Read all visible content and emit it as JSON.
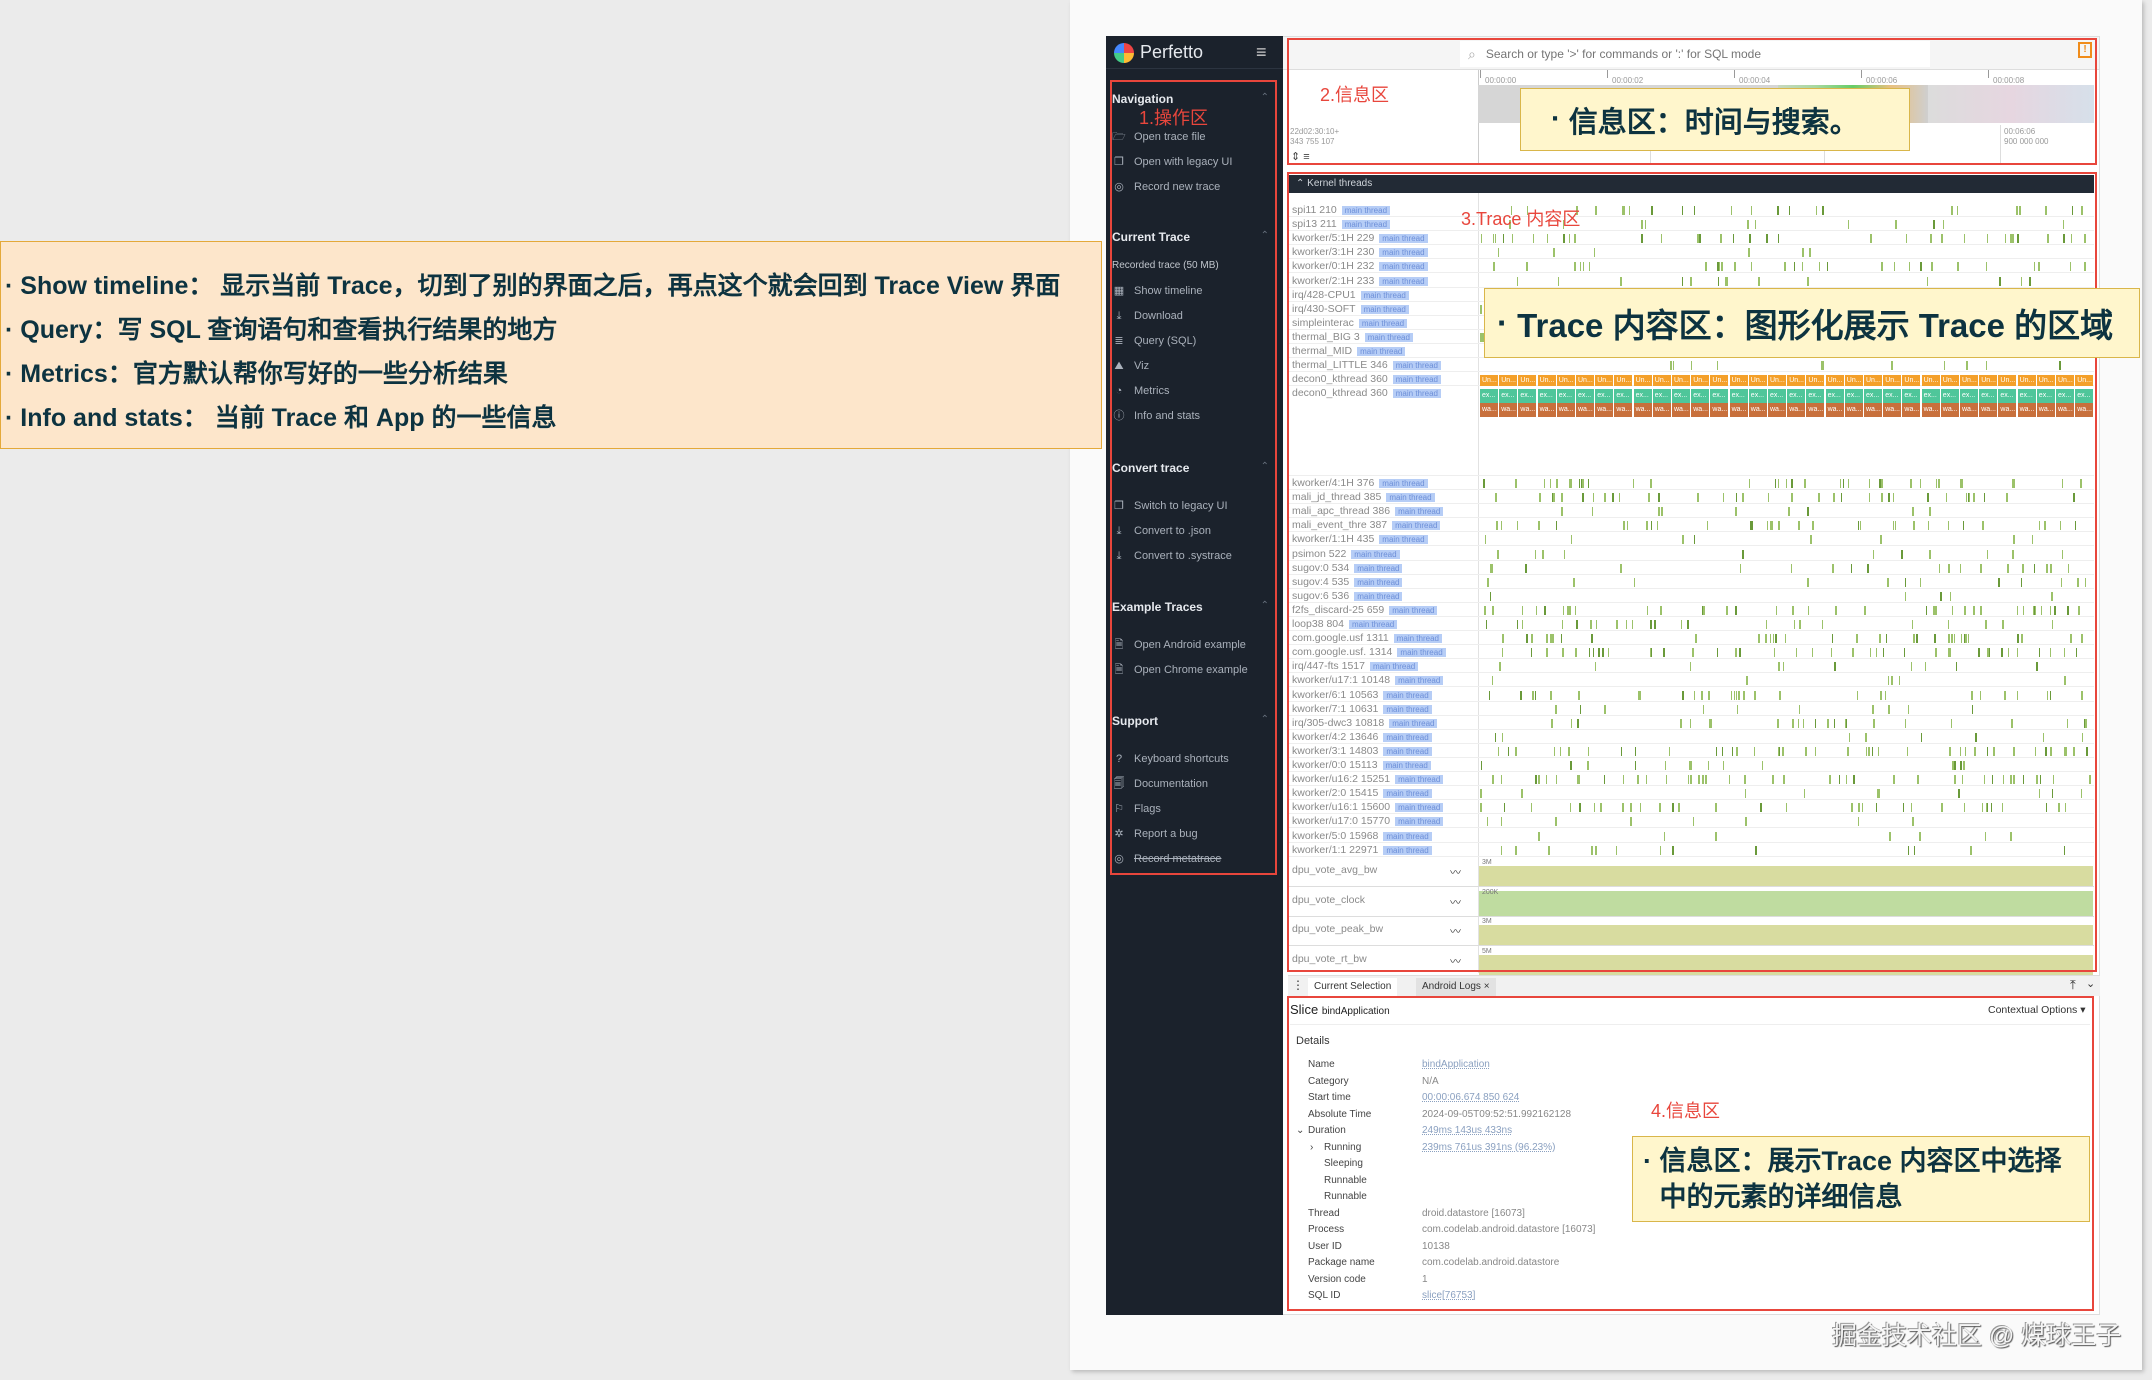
{
  "app": {
    "name": "Perfetto"
  },
  "sidebar": {
    "sections": [
      {
        "title": "Navigation",
        "items": [
          {
            "icon": "folder-open-icon",
            "label": "Open trace file"
          },
          {
            "icon": "copy-window-icon",
            "label": "Open with legacy UI"
          },
          {
            "icon": "record-icon",
            "label": "Record new trace"
          }
        ]
      },
      {
        "title": "Current Trace",
        "subtitle": "Recorded trace (50 MB)",
        "items": [
          {
            "icon": "timeline-icon",
            "label": "Show timeline"
          },
          {
            "icon": "download-icon",
            "label": "Download"
          },
          {
            "icon": "database-icon",
            "label": "Query (SQL)"
          },
          {
            "icon": "viz-icon",
            "label": "Viz"
          },
          {
            "icon": "gauge-icon",
            "label": "Metrics"
          },
          {
            "icon": "info-icon",
            "label": "Info and stats"
          }
        ]
      },
      {
        "title": "Convert trace",
        "items": [
          {
            "icon": "copy-window-icon",
            "label": "Switch to legacy UI"
          },
          {
            "icon": "download-icon",
            "label": "Convert to .json"
          },
          {
            "icon": "download-icon",
            "label": "Convert to .systrace"
          }
        ]
      },
      {
        "title": "Example Traces",
        "items": [
          {
            "icon": "document-icon",
            "label": "Open Android example"
          },
          {
            "icon": "document-icon",
            "label": "Open Chrome example"
          }
        ]
      },
      {
        "title": "Support",
        "items": [
          {
            "icon": "help-icon",
            "label": "Keyboard shortcuts"
          },
          {
            "icon": "doc-search-icon",
            "label": "Documentation"
          },
          {
            "icon": "flag-icon",
            "label": "Flags"
          },
          {
            "icon": "bug-icon",
            "label": "Report a bug"
          },
          {
            "icon": "record-icon",
            "label": "Record metatrace",
            "strike": true
          }
        ]
      }
    ]
  },
  "search": {
    "placeholder": "Search or type '>' for commands or ':' for SQL mode"
  },
  "timeline": {
    "ticks": [
      "00:00:00",
      "00:00:02",
      "00:00:04",
      "00:00:06",
      "00:00:08"
    ],
    "left_offset": [
      "22d02:30:10+",
      "343 755 107"
    ],
    "right_offset": [
      "00:06:06",
      "900 000 000"
    ]
  },
  "tracks": {
    "group_title": "Kernel threads",
    "tag": "main thread",
    "rows_a": [
      "spi11 210",
      "spi13 211",
      "kworker/5:1H 229",
      "kworker/3:1H 230",
      "kworker/0:1H 232",
      "kworker/2:1H 233",
      "irq/428-CPU1",
      "irq/430-SOFT",
      "simpleinterac",
      "thermal_BIG 3",
      "thermal_MID",
      "thermal_LITTLE 346"
    ],
    "decon": [
      "decon0_kthread 360",
      "decon0_kthread 360"
    ],
    "slice_labels": [
      "Un...",
      "ex...",
      "wa..."
    ],
    "rows_b": [
      "kworker/4:1H 376",
      "mali_jd_thread 385",
      "mali_apc_thread 386",
      "mali_event_thre 387",
      "kworker/1:1H 435",
      "psimon 522",
      "sugov:0 534",
      "sugov:4 535",
      "sugov:6 536",
      "f2fs_discard-25 659",
      "loop38 804",
      "com.google.usf 1311",
      "com.google.usf. 1314",
      "irq/447-fts 1517",
      "kworker/u17:1 10148",
      "kworker/6:1 10563",
      "kworker/7:1 10631",
      "irq/305-dwc3 10818",
      "kworker/4:2 13646",
      "kworker/3:1 14803",
      "kworker/0:0 15113",
      "kworker/u16:2 15251",
      "kworker/2:0 15415",
      "kworker/u16:1 15600",
      "kworker/u17:0 15770",
      "kworker/5:0 15968",
      "kworker/1:1 22971"
    ],
    "counters": [
      {
        "name": "dpu_vote_avg_bw",
        "max": "3M"
      },
      {
        "name": "dpu_vote_clock",
        "max": "200K"
      },
      {
        "name": "dpu_vote_peak_bw",
        "max": "3M"
      },
      {
        "name": "dpu_vote_rt_bw",
        "max": "5M"
      }
    ]
  },
  "tabs": [
    {
      "label": "Current Selection"
    },
    {
      "label": "Android Logs",
      "closable": true
    }
  ],
  "details": {
    "kind": "Slice",
    "title": "bindApplication",
    "contextual": "Contextual Options",
    "section": "Details",
    "rows": [
      {
        "label": "Name",
        "value": "bindApplication",
        "link": true
      },
      {
        "label": "Category",
        "value": "N/A"
      },
      {
        "label": "Start time",
        "value": "00:00:06.674 850 624",
        "link": true
      },
      {
        "label": "Absolute Time",
        "value": "2024-09-05T09:52:51.992162128"
      },
      {
        "label": "Duration",
        "value": "249ms 143us 433ns",
        "link": true
      },
      {
        "label": "Running",
        "value": "239ms 761us 391ns (96.23%)",
        "link": true
      },
      {
        "label": "Sleeping",
        "value": ""
      },
      {
        "label": "Runnable",
        "value": ""
      },
      {
        "label": "Runnable",
        "value": ""
      },
      {
        "label": "Thread",
        "value": "droid.datastore [16073]"
      },
      {
        "label": "Process",
        "value": "com.codelab.android.datastore [16073]"
      },
      {
        "label": "User ID",
        "value": "10138"
      },
      {
        "label": "Package name",
        "value": "com.codelab.android.datastore"
      },
      {
        "label": "Version code",
        "value": "1"
      },
      {
        "label": "SQL ID",
        "value": "slice[76753]",
        "link": true
      }
    ]
  },
  "annotations": {
    "zone1": "1.操作区",
    "zone2": "2.信息区",
    "zone3": "3.Trace 内容区",
    "zone4": "4.信息区",
    "left_callout": [
      "Show timeline：  显示当前 Trace，切到了别的界面之后，再点这个就会回到 Trace View 界面",
      "Query：写 SQL 查询语句和查看执行结果的地方",
      "Metrics：官方默认帮你写好的一些分析结果",
      "Info and stats：  当前 Trace 和 App 的一些信息"
    ],
    "info_callout": "信息区：时间与搜索。",
    "trace_callout": "Trace 内容区：图形化展示 Trace 的区域",
    "detail_callout": "信息区：展示Trace 内容区中选择中的元素的详细信息"
  },
  "watermark": "掘金技术社区 @ 煤球王子",
  "colors": {
    "sidebar": "#1b222c",
    "annotation_red": "#e8463c",
    "callout_bg": "#fff6cc",
    "left_callout_bg": "#fde6cb",
    "slice_orange": "#f4a02a",
    "slice_green": "#4fc69a",
    "slice_brown": "#c8703c",
    "counter": "#d8dca0"
  }
}
